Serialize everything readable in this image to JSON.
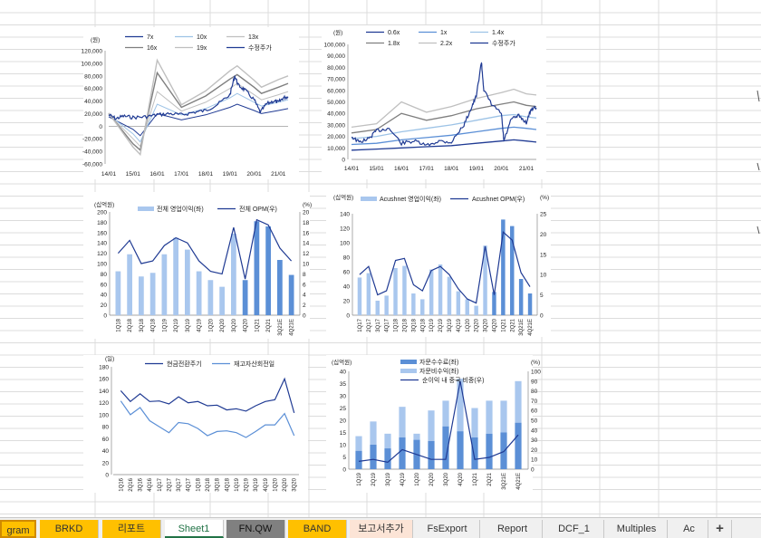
{
  "tabs": [
    {
      "label": "gram",
      "bg": "#ffc000"
    },
    {
      "label": "BRKD",
      "bg": "#ffc000"
    },
    {
      "label": "리포트",
      "bg": "#ffc000"
    },
    {
      "label": "Sheet1",
      "bg": "#ffffff",
      "active": true
    },
    {
      "label": "FN.QW",
      "bg": "#808080"
    },
    {
      "label": "BAND",
      "bg": "#ffc000"
    },
    {
      "label": "보고서추가",
      "bg": "#fce4d6"
    },
    {
      "label": "FsExport",
      "bg": "#f0f0f0"
    },
    {
      "label": "Report",
      "bg": "#f0f0f0"
    },
    {
      "label": "DCF_1",
      "bg": "#f0f0f0"
    },
    {
      "label": "Multiples",
      "bg": "#f0f0f0"
    },
    {
      "label": "Ac",
      "bg": "#f0f0f0"
    }
  ],
  "add_sheet_label": "+",
  "colors": {
    "navy": "#1f3a93",
    "mid": "#5b8fd6",
    "light": "#9dc3e6",
    "gray": "#7f7f7f",
    "lgray": "#bfbfbf",
    "bar_light": "#a9c7ee",
    "bar_dark": "#5b8fd6"
  },
  "chart_data": [
    {
      "type": "line",
      "unit": "(원)",
      "legend": [
        "7x",
        "10x",
        "13x",
        "16x",
        "19x",
        "수정주가"
      ],
      "x_ticks": [
        "14/01",
        "15/01",
        "16/01",
        "17/01",
        "18/01",
        "19/01",
        "20/01",
        "21/01"
      ],
      "y_ticks": [
        "120,000",
        "100,000",
        "80,000",
        "60,000",
        "40,000",
        "20,000",
        "0",
        "-20,000",
        "-40,000",
        "-60,000"
      ],
      "ylim": [
        -60000,
        120000
      ],
      "x": [
        2014.0,
        2015.0,
        2015.3,
        2016.0,
        2017.0,
        2018.0,
        2019.0,
        2019.3,
        2020.0,
        2020.3,
        2021.0,
        2021.4
      ],
      "series": [
        {
          "name": "7x",
          "values": [
            15000,
            -5000,
            -15000,
            20000,
            10000,
            18000,
            30000,
            35000,
            25000,
            20000,
            25000,
            28000
          ]
        },
        {
          "name": "10x",
          "values": [
            18000,
            -12000,
            -25000,
            35000,
            18000,
            28000,
            45000,
            52000,
            38000,
            32000,
            38000,
            42000
          ]
        },
        {
          "name": "13x",
          "values": [
            19000,
            -20000,
            -32000,
            55000,
            24000,
            38000,
            60000,
            68000,
            50000,
            42000,
            50000,
            55000
          ]
        },
        {
          "name": "16x",
          "values": [
            20000,
            -28000,
            -38000,
            85000,
            30000,
            48000,
            75000,
            82000,
            62000,
            52000,
            62000,
            68000
          ]
        },
        {
          "name": "19x",
          "values": [
            21000,
            -33000,
            -45000,
            105000,
            34000,
            56000,
            88000,
            96000,
            73000,
            62000,
            74000,
            80000
          ]
        }
      ],
      "price": [
        [
          2014.0,
          18000
        ],
        [
          2014.3,
          12000
        ],
        [
          2014.6,
          16000
        ],
        [
          2015.0,
          14000
        ],
        [
          2015.5,
          15000
        ],
        [
          2016.0,
          18000
        ],
        [
          2016.5,
          20000
        ],
        [
          2017.0,
          18000
        ],
        [
          2017.5,
          22000
        ],
        [
          2018.0,
          25000
        ],
        [
          2018.5,
          35000
        ],
        [
          2019.0,
          50000
        ],
        [
          2019.2,
          80000
        ],
        [
          2019.35,
          65000
        ],
        [
          2019.6,
          58000
        ],
        [
          2020.0,
          42000
        ],
        [
          2020.25,
          22000
        ],
        [
          2020.5,
          35000
        ],
        [
          2020.8,
          40000
        ],
        [
          2021.0,
          38000
        ],
        [
          2021.2,
          45000
        ],
        [
          2021.4,
          47000
        ]
      ]
    },
    {
      "type": "line",
      "unit": "(원)",
      "legend": [
        "0.6x",
        "1x",
        "1.4x",
        "1.8x",
        "2.2x",
        "수정주가"
      ],
      "x_ticks": [
        "14/01",
        "15/01",
        "16/01",
        "17/01",
        "18/01",
        "19/01",
        "20/01",
        "21/01"
      ],
      "y_ticks": [
        "100,000",
        "90,000",
        "80,000",
        "70,000",
        "60,000",
        "50,000",
        "40,000",
        "30,000",
        "20,000",
        "10,000",
        "0"
      ],
      "ylim": [
        0,
        100000
      ],
      "x": [
        2014.0,
        2015.0,
        2016.0,
        2017.0,
        2018.0,
        2019.0,
        2020.0,
        2020.5,
        2021.0,
        2021.4
      ],
      "series": [
        {
          "name": "0.6x",
          "values": [
            8000,
            9000,
            10000,
            11000,
            12000,
            14000,
            16000,
            17000,
            16000,
            15000
          ]
        },
        {
          "name": "1x",
          "values": [
            13000,
            14000,
            17000,
            19000,
            21000,
            24000,
            27000,
            28000,
            27000,
            26000
          ]
        },
        {
          "name": "1.4x",
          "values": [
            18000,
            20000,
            24000,
            27000,
            30000,
            34000,
            38000,
            39000,
            37000,
            36000
          ]
        },
        {
          "name": "1.8x",
          "values": [
            23000,
            26000,
            40000,
            34000,
            38000,
            44000,
            48000,
            50000,
            47000,
            46000
          ]
        },
        {
          "name": "2.2x",
          "values": [
            28000,
            31000,
            50000,
            41000,
            46000,
            53000,
            58000,
            61000,
            57000,
            56000
          ]
        }
      ],
      "price": [
        [
          2014.0,
          20000
        ],
        [
          2014.3,
          15000
        ],
        [
          2014.7,
          18000
        ],
        [
          2015.0,
          25000
        ],
        [
          2015.5,
          27000
        ],
        [
          2016.0,
          14000
        ],
        [
          2016.5,
          16000
        ],
        [
          2017.0,
          12000
        ],
        [
          2017.5,
          16000
        ],
        [
          2018.0,
          15000
        ],
        [
          2018.5,
          30000
        ],
        [
          2018.8,
          45000
        ],
        [
          2019.0,
          55000
        ],
        [
          2019.2,
          85000
        ],
        [
          2019.3,
          60000
        ],
        [
          2019.6,
          48000
        ],
        [
          2020.0,
          40000
        ],
        [
          2020.1,
          16000
        ],
        [
          2020.4,
          35000
        ],
        [
          2020.7,
          38000
        ],
        [
          2021.0,
          32000
        ],
        [
          2021.2,
          44000
        ],
        [
          2021.4,
          45000
        ]
      ]
    },
    {
      "type": "bar",
      "left_unit": "(십억원)",
      "right_unit": "(%)",
      "legend": [
        "전체 영업이익(좌)",
        "전체 OPM(우)"
      ],
      "categories": [
        "1Q18",
        "2Q18",
        "3Q18",
        "4Q18",
        "1Q19",
        "2Q19",
        "3Q19",
        "4Q19",
        "1Q20",
        "2Q20",
        "3Q20",
        "4Q20",
        "1Q21",
        "2Q21",
        "3Q21E",
        "4Q21E"
      ],
      "y_ticks": [
        "200",
        "180",
        "160",
        "140",
        "120",
        "100",
        "80",
        "60",
        "40",
        "20",
        "0"
      ],
      "y2_ticks": [
        "20",
        "18",
        "16",
        "14",
        "12",
        "10",
        "8",
        "6",
        "4",
        "2",
        "0"
      ],
      "ylim": [
        0,
        200
      ],
      "y2lim": [
        0,
        20
      ],
      "values": [
        85,
        118,
        75,
        82,
        118,
        150,
        127,
        85,
        68,
        55,
        158,
        68,
        182,
        172,
        107,
        78
      ],
      "dark": [
        false,
        false,
        false,
        false,
        false,
        false,
        false,
        false,
        false,
        false,
        false,
        true,
        true,
        true,
        true,
        true
      ],
      "line": [
        12,
        14.5,
        10,
        10.5,
        13.5,
        15,
        14,
        10.5,
        8.5,
        8,
        17,
        7,
        18.5,
        17.5,
        13,
        10.5
      ]
    },
    {
      "type": "bar",
      "left_unit": "(십억원)",
      "right_unit": "(%)",
      "legend": [
        "Acushnet 영업이익(좌)",
        "Acushnet OPM(우)"
      ],
      "categories": [
        "1Q17",
        "2Q17",
        "3Q17",
        "4Q17",
        "1Q18",
        "2Q18",
        "3Q18",
        "4Q18",
        "1Q19",
        "2Q19",
        "3Q19",
        "4Q19",
        "1Q20",
        "2Q20",
        "3Q20",
        "4Q20",
        "1Q21",
        "2Q21",
        "3Q21E",
        "4Q21E"
      ],
      "y_ticks": [
        "140",
        "120",
        "100",
        "80",
        "60",
        "40",
        "20",
        "0"
      ],
      "y2_ticks": [
        "25",
        "20",
        "15",
        "10",
        "5",
        "0"
      ],
      "ylim": [
        0,
        140
      ],
      "y2lim": [
        0,
        25
      ],
      "values": [
        52,
        58,
        20,
        27,
        65,
        68,
        30,
        22,
        63,
        70,
        53,
        33,
        22,
        13,
        96,
        32,
        132,
        123,
        50,
        30
      ],
      "dark": [
        false,
        false,
        false,
        false,
        false,
        false,
        false,
        false,
        false,
        false,
        false,
        false,
        false,
        false,
        false,
        true,
        true,
        true,
        true,
        true
      ],
      "line": [
        10,
        12,
        5,
        6,
        13.5,
        14,
        7.5,
        6,
        11,
        12,
        10,
        6.5,
        4,
        3,
        17,
        5,
        20.5,
        18.5,
        10.5,
        7
      ]
    },
    {
      "type": "line",
      "unit": "(일)",
      "legend": [
        "현금전환주기",
        "재고자산회전일"
      ],
      "categories": [
        "1Q16",
        "2Q16",
        "3Q16",
        "4Q16",
        "1Q17",
        "2Q17",
        "3Q17",
        "4Q17",
        "1Q18",
        "2Q18",
        "3Q18",
        "4Q18",
        "1Q19",
        "2Q19",
        "3Q19",
        "4Q19",
        "1Q20",
        "2Q20",
        "3Q20"
      ],
      "y_ticks": [
        "180",
        "160",
        "140",
        "120",
        "100",
        "80",
        "60",
        "40",
        "20",
        "0"
      ],
      "ylim": [
        0,
        180
      ],
      "series": [
        {
          "name": "현금전환주기",
          "values": [
            140,
            122,
            135,
            122,
            123,
            118,
            130,
            120,
            122,
            115,
            116,
            108,
            110,
            106,
            115,
            122,
            125,
            160,
            103
          ]
        },
        {
          "name": "재고자산회전일",
          "values": [
            123,
            100,
            112,
            90,
            80,
            70,
            87,
            85,
            77,
            65,
            72,
            73,
            70,
            62,
            72,
            83,
            83,
            102,
            65
          ]
        }
      ]
    },
    {
      "type": "bar",
      "left_unit": "(십억원)",
      "right_unit": "(%)",
      "legend": [
        "자문수수료(좌)",
        "자문비수익(좌)",
        "순이익 내 중국 비중(우)"
      ],
      "categories": [
        "1Q19",
        "2Q19",
        "3Q19",
        "4Q19",
        "1Q20",
        "2Q20",
        "3Q20",
        "4Q20",
        "1Q21",
        "2Q21",
        "3Q21E",
        "4Q21E"
      ],
      "y_ticks": [
        "40",
        "35",
        "30",
        "25",
        "20",
        "15",
        "10",
        "5",
        "0"
      ],
      "y2_ticks": [
        "100",
        "90",
        "80",
        "70",
        "60",
        "50",
        "40",
        "30",
        "20",
        "10",
        "0"
      ],
      "ylim": [
        0,
        40
      ],
      "y2lim": [
        0,
        100
      ],
      "stack_base": [
        7.5,
        10,
        8.5,
        13,
        12,
        11.5,
        17.5,
        15.5,
        13,
        14.5,
        15,
        19
      ],
      "stack_top": [
        13.5,
        19.5,
        14.5,
        25.5,
        14.5,
        24,
        28,
        37,
        25,
        28,
        28,
        36
      ],
      "line": [
        8,
        10,
        7,
        20,
        15,
        10,
        10,
        90,
        10,
        12,
        18,
        35
      ]
    }
  ]
}
